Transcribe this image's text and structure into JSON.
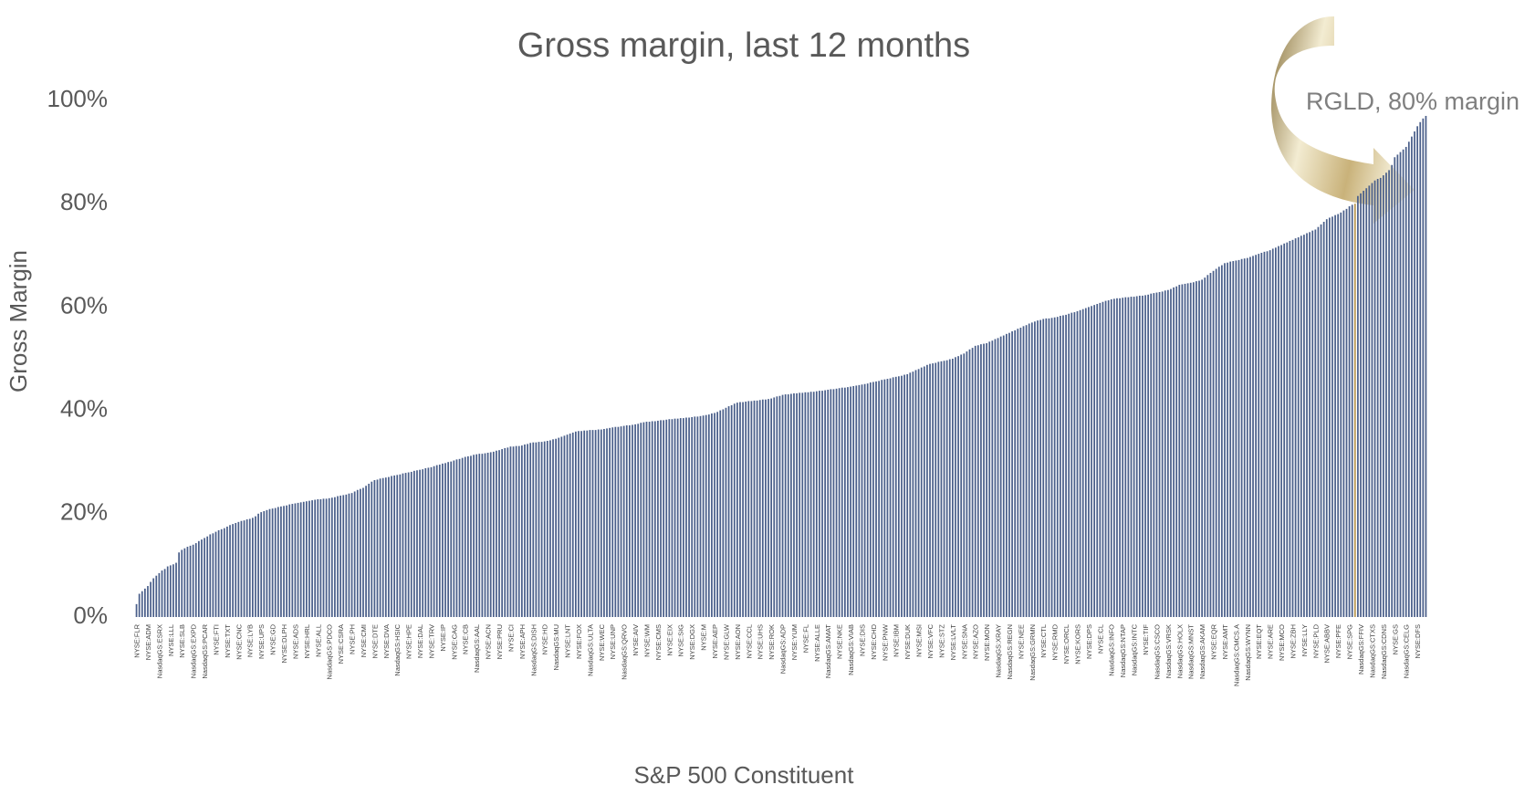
{
  "chart_data": {
    "type": "bar",
    "title": "Gross margin, last 12 months",
    "xlabel": "S&P 500 Constituent",
    "ylabel": "Gross Margin",
    "annotation": "RGLD, 80% margin",
    "color": "#4a5f8a",
    "highlight": {
      "index": 430,
      "color": "#b8964e"
    },
    "ylim": [
      0,
      100
    ],
    "yticks": [
      {
        "value": 0,
        "label": "0%"
      },
      {
        "value": 20,
        "label": "20%"
      },
      {
        "value": 40,
        "label": "40%"
      },
      {
        "value": 60,
        "label": "60%"
      },
      {
        "value": 80,
        "label": "80%"
      },
      {
        "value": 100,
        "label": "100%"
      }
    ],
    "categories": [
      "NYSE:FLR",
      null,
      null,
      null,
      "NYSE:ADM",
      null,
      null,
      null,
      "NasdaqGS:ESRX",
      null,
      null,
      null,
      "NYSE:LLL",
      null,
      null,
      null,
      "NYSE:SLB",
      null,
      null,
      null,
      "NasdaqGS:EXPD",
      null,
      null,
      null,
      "NasdaqGS:PCAR",
      null,
      null,
      null,
      "NYSE:FTI",
      null,
      null,
      null,
      "NYSE:TXT",
      null,
      null,
      null,
      "NYSE:CNC",
      null,
      null,
      null,
      "NYSE:LYB",
      null,
      null,
      null,
      "NYSE:UPS",
      null,
      null,
      null,
      "NYSE:GD",
      null,
      null,
      null,
      "NYSE:DLPH",
      null,
      null,
      null,
      "NYSE:ADS",
      null,
      null,
      null,
      "NYSE:HRL",
      null,
      null,
      null,
      "NYSE:ALL",
      null,
      null,
      null,
      "NasdaqGS:PDCO",
      null,
      null,
      null,
      "NYSE:CSRA",
      null,
      null,
      null,
      "NYSE:PH",
      null,
      null,
      null,
      "NYSE:CMI",
      null,
      null,
      null,
      "NYSE:DTE",
      null,
      null,
      null,
      "NYSE:DVA",
      null,
      null,
      null,
      "NasdaqGS:HSIC",
      null,
      null,
      null,
      "NYSE:HPE",
      null,
      null,
      null,
      "NYSE:DAL",
      null,
      null,
      null,
      "NYSE:TRV",
      null,
      null,
      null,
      "NYSE:IP",
      null,
      null,
      null,
      "NYSE:CAG",
      null,
      null,
      null,
      "NYSE:CB",
      null,
      null,
      null,
      "NasdaqGS:AAL",
      null,
      null,
      null,
      "NYSE:ACN",
      null,
      null,
      null,
      "NYSE:PRU",
      null,
      null,
      null,
      "NYSE:CI",
      null,
      null,
      null,
      "NYSE:APH",
      null,
      null,
      null,
      "NasdaqGS:DISH",
      null,
      null,
      null,
      "NYSE:HD",
      null,
      null,
      null,
      "NasdaqGS:MU",
      null,
      null,
      null,
      "NYSE:LNT",
      null,
      null,
      null,
      "NYSE:FOX",
      null,
      null,
      null,
      "NasdaqGS:ULTA",
      null,
      null,
      null,
      "NYSE:WEC",
      null,
      null,
      null,
      "NYSE:UNP",
      null,
      null,
      null,
      "NasdaqGS:QRVO",
      null,
      null,
      null,
      "NYSE:AIV",
      null,
      null,
      null,
      "NYSE:WM",
      null,
      null,
      null,
      "NYSE:CMS",
      null,
      null,
      null,
      "NYSE:EIX",
      null,
      null,
      null,
      "NYSE:SIG",
      null,
      null,
      null,
      "NYSE:DGX",
      null,
      null,
      null,
      "NYSE:M",
      null,
      null,
      null,
      "NYSE:AEP",
      null,
      null,
      null,
      "NYSE:GLW",
      null,
      null,
      null,
      "NYSE:AON",
      null,
      null,
      null,
      "NYSE:CCL",
      null,
      null,
      null,
      "NYSE:UHS",
      null,
      null,
      null,
      "NYSE:ROK",
      null,
      null,
      null,
      "NasdaqGS:ADP",
      null,
      null,
      null,
      "NYSE:YUM",
      null,
      null,
      null,
      "NYSE:FL",
      null,
      null,
      null,
      "NYSE:ALLE",
      null,
      null,
      null,
      "NasdaqGS:AMAT",
      null,
      null,
      null,
      "NYSE:NKE",
      null,
      null,
      null,
      "NasdaqGS:VIAB",
      null,
      null,
      null,
      "NYSE:DIS",
      null,
      null,
      null,
      "NYSE:CHD",
      null,
      null,
      null,
      "NYSE:PNW",
      null,
      null,
      null,
      "NYSE:IBM",
      null,
      null,
      null,
      "NYSE:DUK",
      null,
      null,
      null,
      "NYSE:MSI",
      null,
      null,
      null,
      "NYSE:VFC",
      null,
      null,
      null,
      "NYSE:STZ",
      null,
      null,
      null,
      "NYSE:LVLT",
      null,
      null,
      null,
      "NYSE:SNA",
      null,
      null,
      null,
      "NYSE:AZO",
      null,
      null,
      null,
      "NYSE:MON",
      null,
      null,
      null,
      "NasdaqGS:XRAY",
      null,
      null,
      null,
      "NasdaqGS:REGN",
      null,
      null,
      null,
      "NYSE:NEE",
      null,
      null,
      null,
      "NasdaqGS:GRMN",
      null,
      null,
      null,
      "NYSE:CTL",
      null,
      null,
      null,
      "NYSE:RMD",
      null,
      null,
      null,
      "NYSE:ORCL",
      null,
      null,
      null,
      "NYSE:KORS",
      null,
      null,
      null,
      "NYSE:DPS",
      null,
      null,
      null,
      "NYSE:CL",
      null,
      null,
      null,
      "NasdaqGS:INFO",
      null,
      null,
      null,
      "NasdaqGS:NTAP",
      null,
      null,
      null,
      "NasdaqGS:INTC",
      null,
      null,
      null,
      "NYSE:TIF",
      null,
      null,
      null,
      "NasdaqGS:CSCO",
      null,
      null,
      null,
      "NasdaqGS:VRSK",
      null,
      null,
      null,
      "NasdaqGS:HOLX",
      null,
      null,
      null,
      "NasdaqGS:MNST",
      null,
      null,
      null,
      "NasdaqGS:AKAM",
      null,
      null,
      null,
      "NYSE:EQR",
      null,
      null,
      null,
      "NYSE:AMT",
      null,
      null,
      null,
      "NasdaqGS:CMCS.A",
      null,
      null,
      null,
      "NasdaqGS:WYNN",
      null,
      null,
      null,
      "NYSE:EQT",
      null,
      null,
      null,
      "NYSE:ARE",
      null,
      null,
      null,
      "NYSE:MCO",
      null,
      null,
      null,
      "NYSE:ZBH",
      null,
      null,
      null,
      "NYSE:LLY",
      null,
      null,
      null,
      "NYSE:PLD",
      null,
      null,
      null,
      "NYSE:ABBV",
      null,
      null,
      null,
      "NYSE:PFE",
      null,
      null,
      null,
      "NYSE:SPG",
      null,
      null,
      null,
      "NasdaqGS:FFIV",
      null,
      null,
      null,
      "NasdaqGS:CTXS",
      null,
      null,
      null,
      "NasdaqGS:CDNS",
      null,
      null,
      null,
      "NYSE:GS",
      null,
      null,
      null,
      "NasdaqGS:CELG",
      null,
      null,
      null,
      "NYSE:DFS",
      null,
      null,
      null
    ],
    "values": [
      2.5,
      4.5,
      5,
      5.5,
      6,
      6.8,
      7.5,
      8,
      8.5,
      9,
      9.3,
      9.8,
      10,
      10.2,
      10.5,
      12.5,
      13,
      13.3,
      13.6,
      13.8,
      14,
      14.3,
      14.7,
      15,
      15.3,
      15.6,
      16,
      16.2,
      16.5,
      16.8,
      17,
      17.2,
      17.5,
      17.8,
      18,
      18.2,
      18.4,
      18.6,
      18.7,
      18.9,
      19,
      19.2,
      19.5,
      20,
      20.3,
      20.5,
      20.7,
      20.9,
      21,
      21.1,
      21.3,
      21.4,
      21.5,
      21.6,
      21.8,
      21.9,
      22,
      22.1,
      22.2,
      22.3,
      22.4,
      22.5,
      22.6,
      22.7,
      22.8,
      22.8,
      22.9,
      22.9,
      23,
      23.1,
      23.2,
      23.4,
      23.5,
      23.6,
      23.7,
      23.9,
      24,
      24.3,
      24.6,
      24.8,
      25,
      25.4,
      25.8,
      26.2,
      26.5,
      26.6,
      26.8,
      26.9,
      27,
      27.1,
      27.3,
      27.4,
      27.5,
      27.6,
      27.8,
      27.9,
      28,
      28.1,
      28.3,
      28.4,
      28.5,
      28.6,
      28.8,
      28.9,
      29,
      29.2,
      29.4,
      29.5,
      29.7,
      29.8,
      30,
      30.1,
      30.3,
      30.5,
      30.6,
      30.8,
      31,
      31.1,
      31.2,
      31.4,
      31.5,
      31.6,
      31.6,
      31.7,
      31.8,
      31.9,
      32,
      32.2,
      32.3,
      32.5,
      32.7,
      32.8,
      33,
      33,
      33.1,
      33.1,
      33.2,
      33.4,
      33.5,
      33.7,
      33.8,
      33.8,
      33.9,
      33.9,
      34,
      34.1,
      34.2,
      34.4,
      34.5,
      34.7,
      34.9,
      35.1,
      35.3,
      35.5,
      35.7,
      35.9,
      36,
      36,
      36.1,
      36.1,
      36.2,
      36.2,
      36.2,
      36.3,
      36.3,
      36.4,
      36.5,
      36.6,
      36.7,
      36.8,
      36.8,
      36.9,
      37,
      37.1,
      37.1,
      37.2,
      37.3,
      37.4,
      37.6,
      37.7,
      37.8,
      37.8,
      37.9,
      37.9,
      38,
      38.1,
      38.1,
      38.2,
      38.3,
      38.3,
      38.4,
      38.4,
      38.5,
      38.5,
      38.6,
      38.6,
      38.7,
      38.8,
      38.8,
      38.9,
      39,
      39.1,
      39.2,
      39.4,
      39.5,
      39.7,
      40,
      40.2,
      40.5,
      40.8,
      41,
      41.3,
      41.5,
      41.6,
      41.6,
      41.7,
      41.8,
      41.8,
      41.9,
      41.9,
      42,
      42.1,
      42.1,
      42.2,
      42.3,
      42.5,
      42.7,
      42.8,
      43,
      43.1,
      43.1,
      43.2,
      43.3,
      43.3,
      43.4,
      43.4,
      43.5,
      43.5,
      43.6,
      43.6,
      43.7,
      43.8,
      43.8,
      43.9,
      44,
      44.1,
      44.1,
      44.2,
      44.3,
      44.4,
      44.4,
      44.5,
      44.6,
      44.7,
      44.8,
      44.9,
      45,
      45.1,
      45.2,
      45.4,
      45.5,
      45.6,
      45.7,
      45.9,
      46,
      46.1,
      46.2,
      46.4,
      46.5,
      46.6,
      46.7,
      46.9,
      47,
      47.3,
      47.5,
      47.8,
      48,
      48.3,
      48.5,
      48.8,
      49,
      49.1,
      49.2,
      49.4,
      49.5,
      49.6,
      49.7,
      49.9,
      50,
      50.3,
      50.5,
      50.8,
      51,
      51.4,
      51.8,
      52.1,
      52.5,
      52.6,
      52.8,
      52.9,
      53,
      53.3,
      53.5,
      53.8,
      54,
      54.3,
      54.5,
      54.8,
      55,
      55.3,
      55.5,
      55.8,
      56,
      56.3,
      56.5,
      56.8,
      57,
      57.2,
      57.4,
      57.5,
      57.7,
      57.8,
      57.8,
      57.9,
      58,
      58.1,
      58.3,
      58.4,
      58.5,
      58.7,
      58.9,
      59,
      59.2,
      59.4,
      59.6,
      59.8,
      60,
      60.2,
      60.4,
      60.6,
      60.8,
      61,
      61.2,
      61.3,
      61.5,
      61.6,
      61.7,
      61.7,
      61.8,
      61.9,
      61.9,
      62,
      62,
      62.1,
      62.2,
      62.2,
      62.3,
      62.4,
      62.6,
      62.7,
      62.8,
      62.9,
      63,
      63.2,
      63.3,
      63.5,
      63.8,
      64,
      64.3,
      64.4,
      64.5,
      64.6,
      64.7,
      64.8,
      65,
      65.1,
      65.3,
      65.7,
      66.2,
      66.6,
      67,
      67.4,
      67.8,
      68.1,
      68.5,
      68.6,
      68.8,
      68.9,
      69,
      69.1,
      69.3,
      69.4,
      69.5,
      69.7,
      69.9,
      70.1,
      70.3,
      70.5,
      70.7,
      70.8,
      71,
      71.3,
      71.5,
      71.8,
      72,
      72.3,
      72.5,
      72.8,
      73,
      73.3,
      73.5,
      73.8,
      74,
      74.3,
      74.5,
      74.8,
      75,
      75.5,
      76,
      76.5,
      77,
      77.3,
      77.5,
      77.8,
      78,
      78.3,
      78.7,
      79,
      79.5,
      79.8,
      80,
      81.5,
      82,
      82.5,
      83,
      83.5,
      84,
      84.5,
      84.8,
      85,
      85.5,
      86,
      86.5,
      87.5,
      89,
      89.5,
      90,
      90.5,
      91,
      92,
      93,
      94,
      95,
      95.8,
      96.5,
      97
    ]
  }
}
